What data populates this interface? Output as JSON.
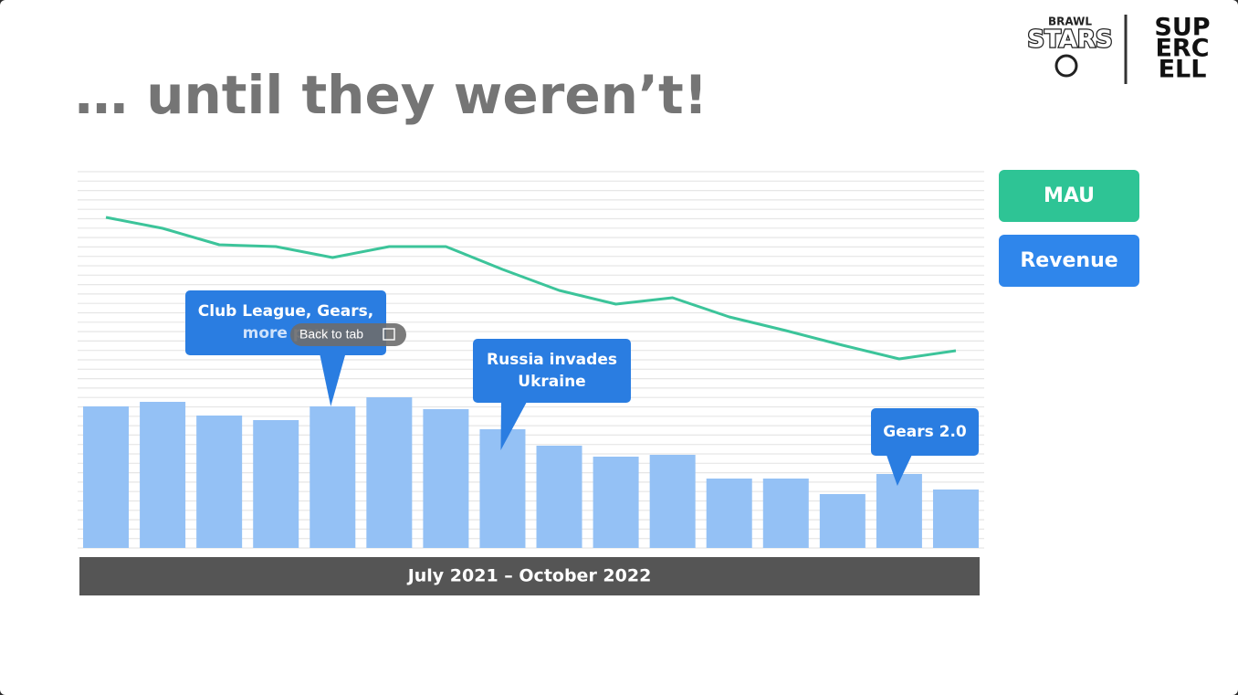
{
  "chart_data": {
    "type": "bar",
    "title": "… until they weren’t!",
    "x_label": "July 2021 – October 2022",
    "categories": [
      null,
      null,
      null,
      null,
      null,
      null,
      null,
      null,
      null,
      null,
      null,
      null,
      null,
      null,
      null,
      null
    ],
    "series": [
      {
        "name": "Revenue",
        "type": "bar",
        "color": "#94c1f5",
        "legend_color": "#2f86eb",
        "values": [
          155,
          160,
          145,
          140,
          155,
          165,
          152,
          130,
          112,
          100,
          102,
          76,
          76,
          59,
          81,
          64
        ]
      },
      {
        "name": "MAU",
        "type": "line",
        "color": "#3cc49a",
        "legend_color": "#2ec495",
        "values": [
          362,
          350,
          332,
          330,
          318,
          330,
          330,
          305,
          282,
          267,
          274,
          253,
          238,
          222,
          207,
          216
        ]
      }
    ],
    "ylim": [
      0,
      412
    ],
    "grid": true,
    "annotations": [
      {
        "lines": [
          "Club League, Gears,",
          "more pow"
        ],
        "category_index": 4
      },
      {
        "lines": [
          "Russia invades",
          "Ukraine"
        ],
        "category_index": 7
      },
      {
        "lines": [
          "Gears 2.0"
        ],
        "category_index": 14
      }
    ]
  },
  "logos": {
    "brawl": [
      "BRAWL",
      "STARS"
    ],
    "supercell": [
      "SUP",
      "ERC",
      "ELL"
    ]
  },
  "overlay": {
    "label": "Back to tab"
  }
}
